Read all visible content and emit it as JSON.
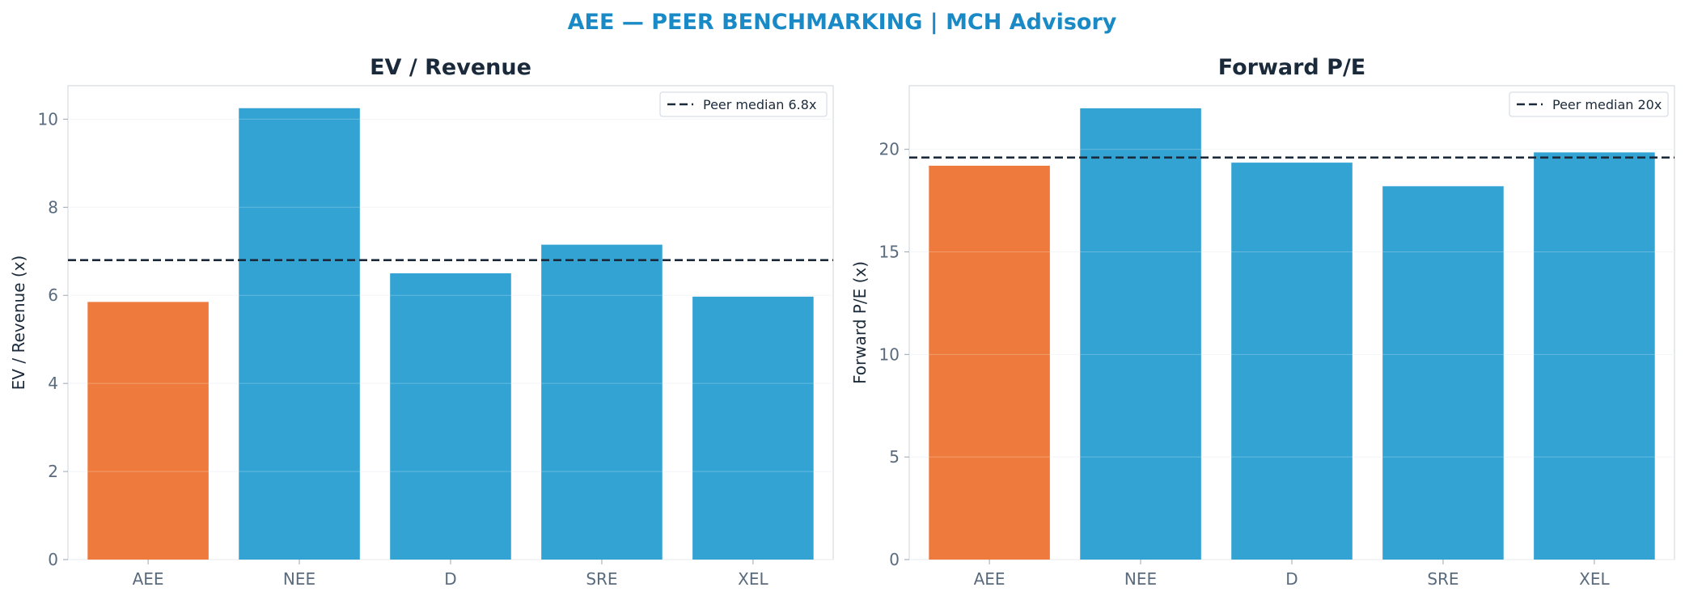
{
  "suptitle": "AEE — PEER BENCHMARKING | MCH Advisory",
  "colors": {
    "subject": "#ee7b3d",
    "peer": "#33a3d4",
    "median_line": "#1b2a3a",
    "suptitle": "#1a8ac6"
  },
  "chart_data": [
    {
      "type": "bar",
      "title": "EV / Revenue",
      "ylabel": "EV / Revenue (x)",
      "xlabel": "",
      "categories": [
        "AEE",
        "NEE",
        "D",
        "SRE",
        "XEL"
      ],
      "values": [
        5.85,
        10.25,
        6.5,
        7.15,
        5.97
      ],
      "highlight": "AEE",
      "ylim": [
        0,
        10.76
      ],
      "yticks": [
        0,
        2,
        4,
        6,
        8,
        10
      ],
      "grid": true,
      "reference_line": {
        "value": 6.8,
        "label": "Peer median 6.8x",
        "style": "dashed"
      },
      "legend": "top-right"
    },
    {
      "type": "bar",
      "title": "Forward P/E",
      "ylabel": "Forward P/E (x)",
      "xlabel": "",
      "categories": [
        "AEE",
        "NEE",
        "D",
        "SRE",
        "XEL"
      ],
      "values": [
        19.2,
        22.0,
        19.35,
        18.2,
        19.85
      ],
      "highlight": "AEE",
      "ylim": [
        0,
        23.1
      ],
      "yticks": [
        0,
        5,
        10,
        15,
        20
      ],
      "grid": true,
      "reference_line": {
        "value": 19.6,
        "label": "Peer median 20x",
        "style": "dashed"
      },
      "legend": "top-right"
    }
  ]
}
